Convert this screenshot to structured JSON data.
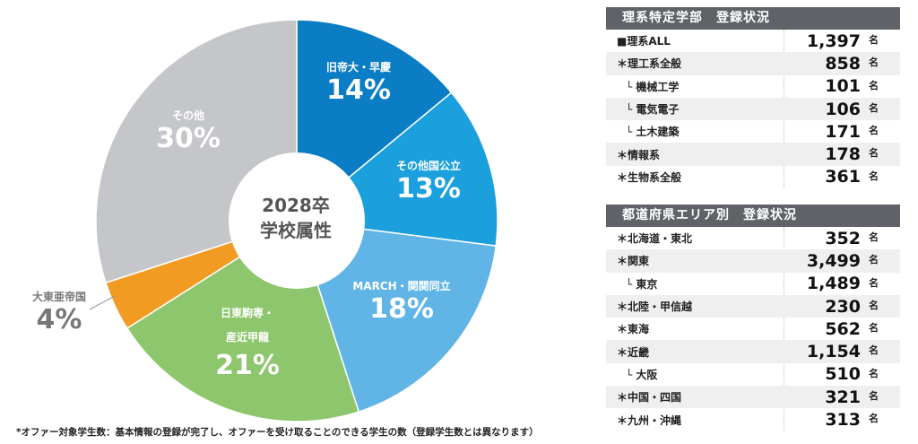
{
  "chart_data": {
    "type": "pie",
    "center_title": [
      "2028卒",
      "学校属性"
    ],
    "slices": [
      {
        "label": "旧帝大・早慶",
        "value": 14,
        "color": "#0b7dc4"
      },
      {
        "label": "その他国公立",
        "value": 13,
        "color": "#1ba0dd"
      },
      {
        "label": "MARCH・関関同立",
        "value": 18,
        "color": "#60b5e6"
      },
      {
        "label": "日東駒専・産近甲龍",
        "value": 21,
        "color": "#8dc66c"
      },
      {
        "label": "大東亜帝国",
        "value": 4,
        "color": "#f29b22"
      },
      {
        "label": "その他",
        "value": 30,
        "color": "#c4c6c9"
      }
    ],
    "pct_labels": [
      "14%",
      "13%",
      "18%",
      "21%",
      "4%",
      "30%"
    ],
    "label_lines": {
      "s3a": "日東駒専・",
      "s3b": "産近甲龍"
    }
  },
  "footnote": "*オファー対象学生数：基本情報の登録が完了し、オファーを受け取ることのできる学生の数（登録学生数とは異なります）",
  "table1": {
    "title": "理系特定学部　登録状況",
    "unit": "名",
    "rows": [
      {
        "label": "■理系ALL",
        "value": "1,397"
      },
      {
        "label": "＊理工系全般",
        "value": "858"
      },
      {
        "label": "└ 機械工学",
        "value": "101"
      },
      {
        "label": "└ 電気電子",
        "value": "106"
      },
      {
        "label": "└ 土木建築",
        "value": "171"
      },
      {
        "label": "＊情報系",
        "value": "178"
      },
      {
        "label": "＊生物系全般",
        "value": "361"
      }
    ]
  },
  "table2": {
    "title": "都道府県エリア別　登録状況",
    "unit": "名",
    "rows": [
      {
        "label": "＊北海道・東北",
        "value": "352"
      },
      {
        "label": "＊関東",
        "value": "3,499"
      },
      {
        "label": "└ 東京",
        "value": "1,489"
      },
      {
        "label": "＊北陸・甲信越",
        "value": "230"
      },
      {
        "label": "＊東海",
        "value": "562"
      },
      {
        "label": "＊近畿",
        "value": "1,154"
      },
      {
        "label": "└ 大阪",
        "value": "510"
      },
      {
        "label": "＊中国・四国",
        "value": "321"
      },
      {
        "label": "＊九州・沖縄",
        "value": "313"
      }
    ]
  }
}
